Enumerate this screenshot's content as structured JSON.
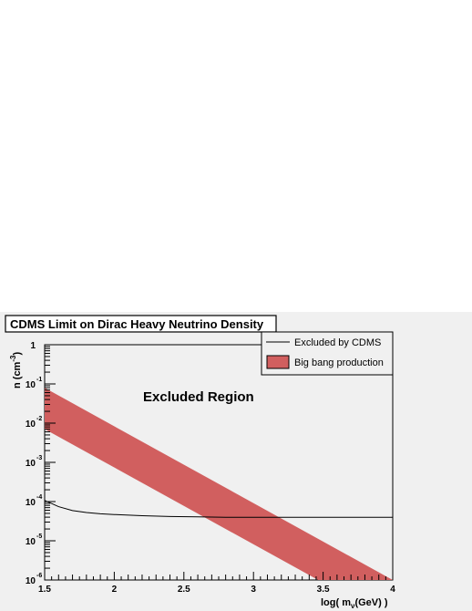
{
  "chart_data": {
    "type": "area",
    "title": "CDMS Limit on Dirac Heavy Neutrino Density",
    "xlabel": {
      "prefix": "log( m",
      "sub": "ν",
      "suffix": "(GeV) )"
    },
    "ylabel": {
      "main": "n (cm",
      "sup": "-3",
      "close": ")"
    },
    "xlim": [
      1.5,
      4.0
    ],
    "ylim_log10": [
      -6,
      0
    ],
    "y_scale": "log",
    "grid": false,
    "legend_position": "top-right",
    "x_ticks": [
      "1.5",
      "2",
      "2.5",
      "3",
      "3.5",
      "4"
    ],
    "x_tick_values": [
      1.5,
      2,
      2.5,
      3,
      3.5,
      4
    ],
    "y_ticks": [
      {
        "value": 0,
        "base": "1",
        "exp": ""
      },
      {
        "value": -1,
        "base": "10",
        "exp": "-1"
      },
      {
        "value": -2,
        "base": "10",
        "exp": "-2"
      },
      {
        "value": -3,
        "base": "10",
        "exp": "-3"
      },
      {
        "value": -4,
        "base": "10",
        "exp": "-4"
      },
      {
        "value": -5,
        "base": "10",
        "exp": "-5"
      },
      {
        "value": -6,
        "base": "10",
        "exp": "-6"
      }
    ],
    "annotation": "Excluded Region",
    "colors": {
      "band": "#d15f5f",
      "frame_bg": "#f0f0f0",
      "line": "#000000"
    },
    "series": [
      {
        "name": "Excluded by CDMS",
        "type": "line",
        "x": [
          1.5,
          1.6,
          1.7,
          1.8,
          1.9,
          2.0,
          2.2,
          2.4,
          2.6,
          2.8,
          3.0,
          3.5,
          4.0
        ],
        "log10_y": [
          -3.97,
          -4.13,
          -4.23,
          -4.28,
          -4.31,
          -4.33,
          -4.36,
          -4.38,
          -4.39,
          -4.4,
          -4.4,
          -4.4,
          -4.4
        ]
      },
      {
        "name": "Big bang production",
        "type": "band",
        "x": [
          1.5,
          4.0
        ],
        "log10_y_upper": [
          -1.1,
          -6.0
        ],
        "log10_y_lower": [
          -2.15,
          -7.05
        ]
      }
    ]
  }
}
